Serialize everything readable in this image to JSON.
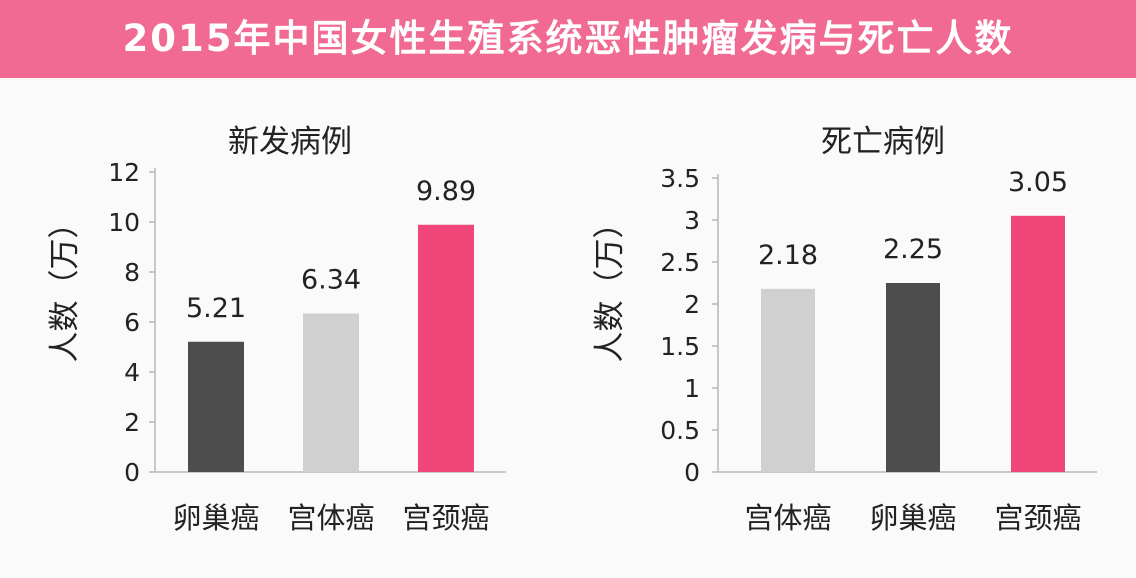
{
  "title": "2015年中国女性生殖系统恶性肿瘤发病与死亡人数",
  "colors": {
    "banner": "#f06a94",
    "dark": "#4d4d4d",
    "light": "#d0d0d0",
    "pink": "#f0467a"
  },
  "chart_data": [
    {
      "type": "bar",
      "title": "新发病例",
      "ylabel": "人数（万）",
      "xlabel": "",
      "categories": [
        "卵巢癌",
        "宫体癌",
        "宫颈癌"
      ],
      "values": [
        5.21,
        6.34,
        9.89
      ],
      "value_labels": [
        "5.21",
        "6.34",
        "9.89"
      ],
      "bar_colors": [
        "#4d4d4d",
        "#d0d0d0",
        "#f0467a"
      ],
      "yticks": [
        "0",
        "2",
        "4",
        "6",
        "8",
        "10",
        "12"
      ],
      "ylim": [
        0,
        12
      ],
      "grid": false,
      "legend": "none"
    },
    {
      "type": "bar",
      "title": "死亡病例",
      "ylabel": "人数（万）",
      "xlabel": "",
      "categories": [
        "宫体癌",
        "卵巢癌",
        "宫颈癌"
      ],
      "values": [
        2.18,
        2.25,
        3.05
      ],
      "value_labels": [
        "2.18",
        "2.25",
        "3.05"
      ],
      "bar_colors": [
        "#d0d0d0",
        "#4d4d4d",
        "#f0467a"
      ],
      "yticks": [
        "0",
        "0.5",
        "1",
        "1.5",
        "2",
        "2.5",
        "3",
        "3.5"
      ],
      "ylim": [
        0,
        3.5
      ],
      "grid": false,
      "legend": "none"
    }
  ]
}
